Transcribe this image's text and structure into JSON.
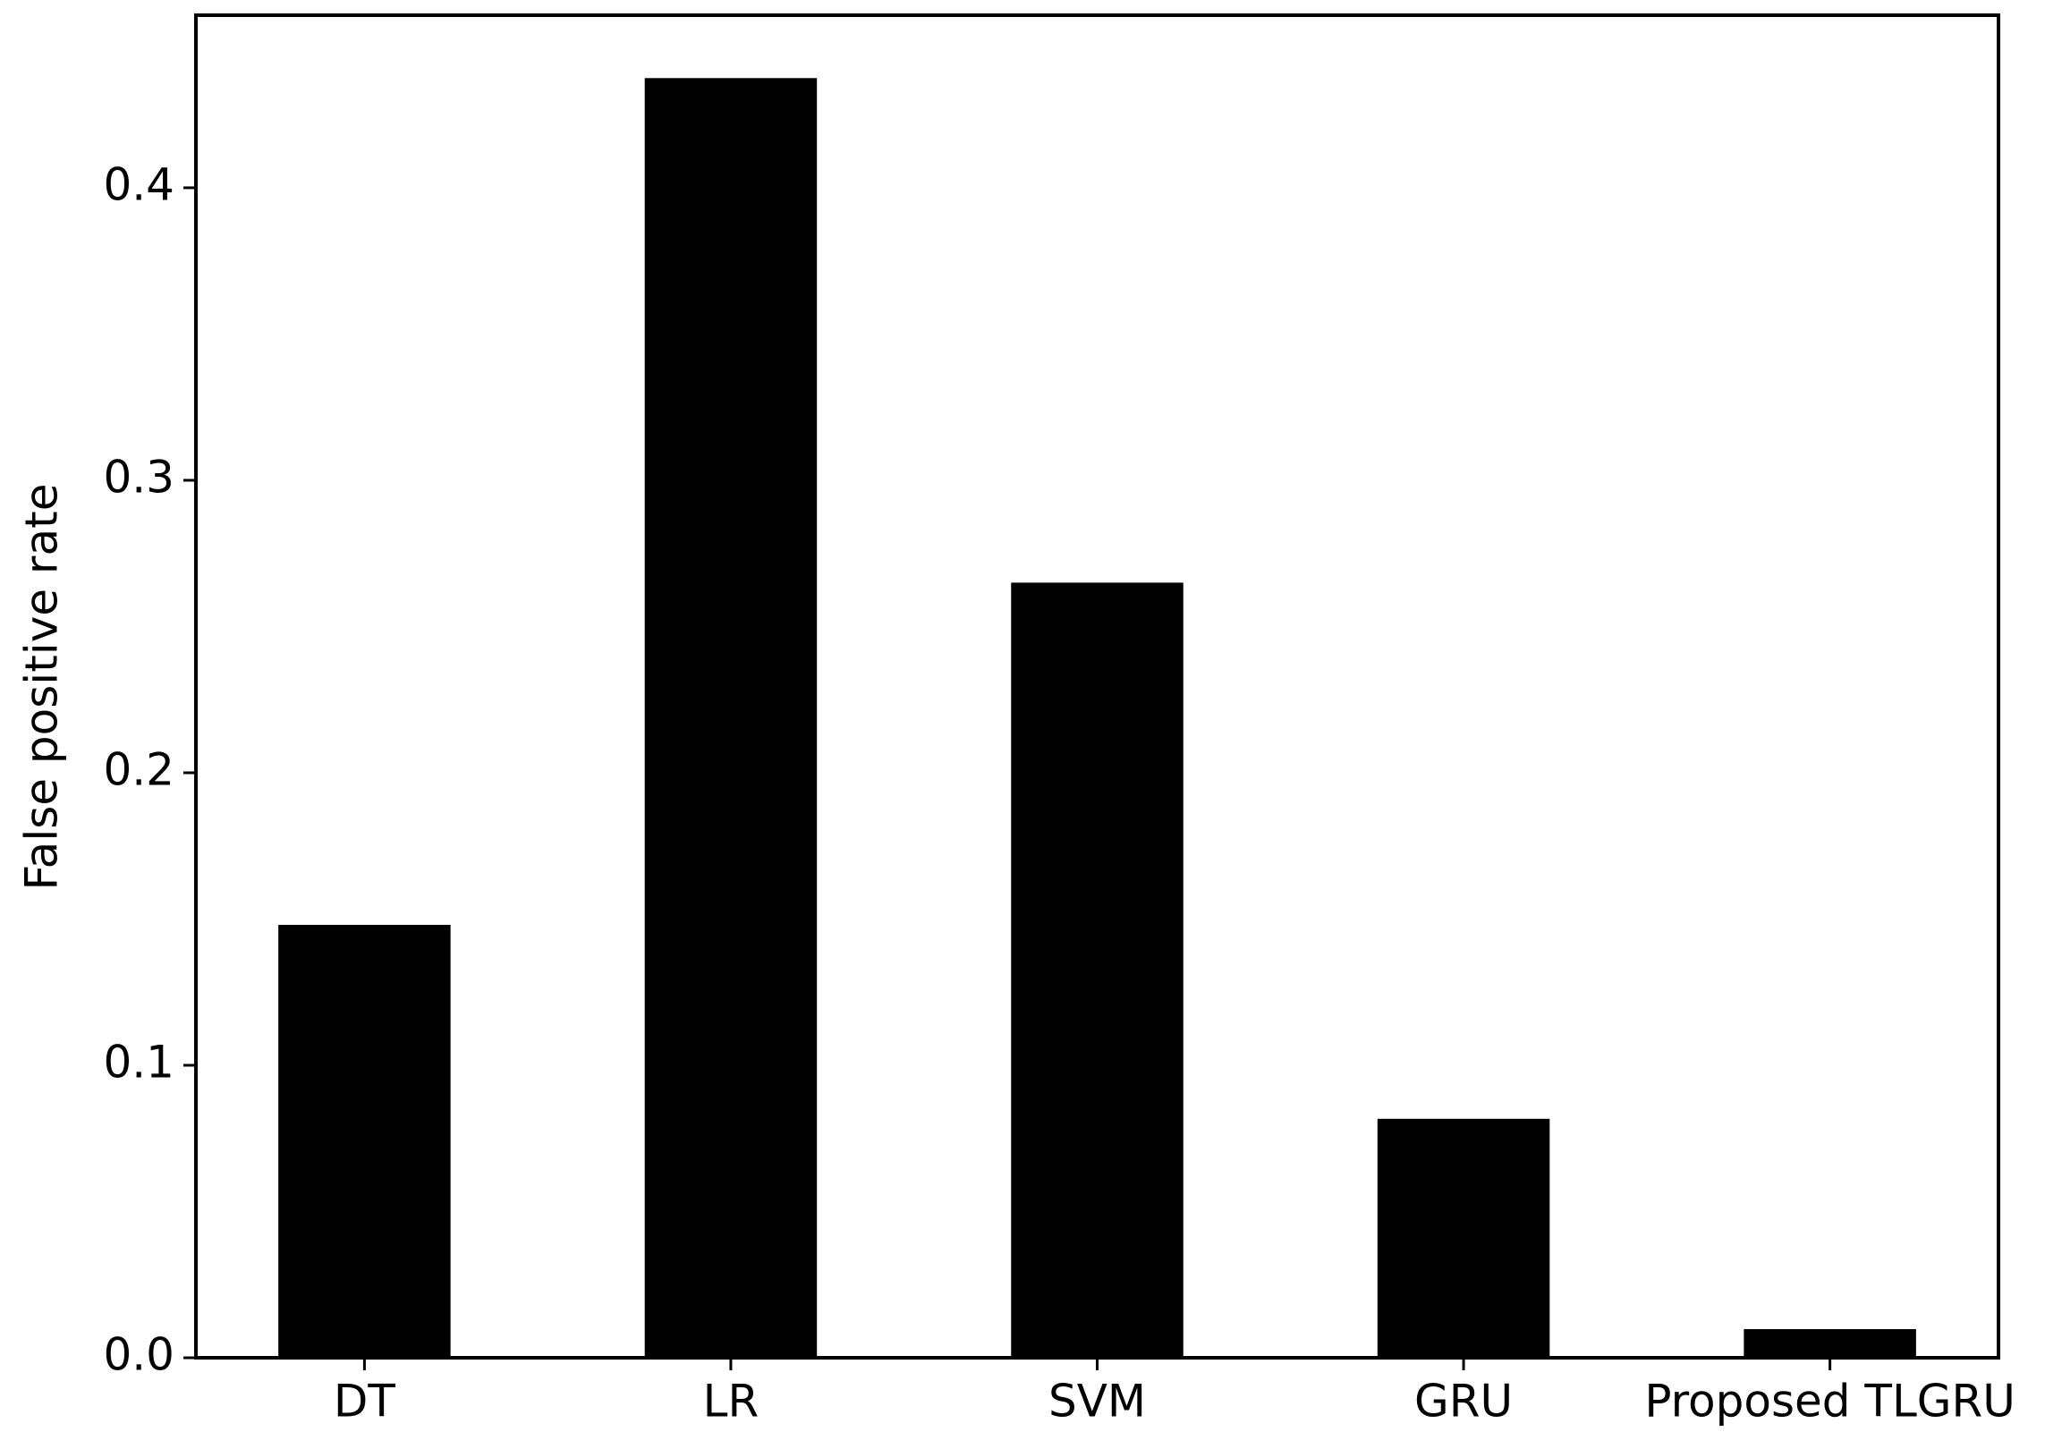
{
  "chart_data": {
    "type": "bar",
    "y_label": "False positive rate",
    "categories": [
      "DT",
      "LR",
      "SVM",
      "GRU",
      "Proposed TLGRU"
    ],
    "values": [
      0.148,
      0.4375,
      0.265,
      0.0817,
      0.0098
    ],
    "color": "#000000",
    "ylim": [
      0,
      0.459
    ],
    "yticks": [
      {
        "value": 0,
        "label": "0.0"
      },
      0.1,
      0.2,
      0.3,
      0.4
    ],
    "grid": false
  }
}
